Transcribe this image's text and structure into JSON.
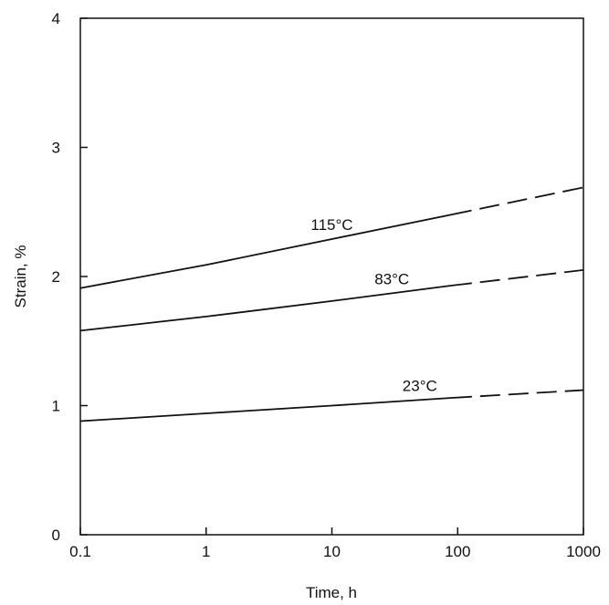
{
  "chart_data": {
    "type": "line",
    "title": "",
    "xlabel": "Time, h",
    "ylabel": "Strain, %",
    "xscale": "log",
    "xlim": [
      0.1,
      1000
    ],
    "ylim": [
      0,
      4
    ],
    "grid": false,
    "legend": "none",
    "x_ticks": [
      "0.1",
      "1",
      "10",
      "100",
      "1000"
    ],
    "y_ticks": [
      "0",
      "1",
      "2",
      "3",
      "4"
    ],
    "series": [
      {
        "name": "115°C",
        "solid": [
          [
            0.1,
            1.91
          ],
          [
            1,
            2.09
          ],
          [
            10,
            2.29
          ],
          [
            90,
            2.48
          ]
        ],
        "dashed": [
          [
            90,
            2.48
          ],
          [
            1000,
            2.69
          ]
        ]
      },
      {
        "name": "83°C",
        "solid": [
          [
            0.1,
            1.58
          ],
          [
            1,
            1.69
          ],
          [
            10,
            1.81
          ],
          [
            90,
            1.93
          ]
        ],
        "dashed": [
          [
            90,
            1.93
          ],
          [
            1000,
            2.05
          ]
        ]
      },
      {
        "name": "23°C",
        "solid": [
          [
            0.1,
            0.88
          ],
          [
            1,
            0.94
          ],
          [
            10,
            1.0
          ],
          [
            90,
            1.06
          ]
        ],
        "dashed": [
          [
            90,
            1.06
          ],
          [
            1000,
            1.12
          ]
        ]
      }
    ]
  },
  "colors": {
    "line": "#111111",
    "axis": "#111111"
  }
}
